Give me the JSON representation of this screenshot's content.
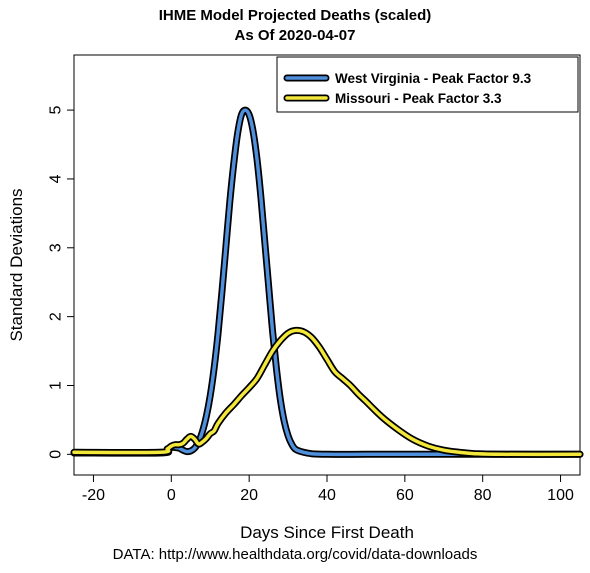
{
  "chart_data": {
    "type": "line",
    "title": "IHME Model Projected Deaths (scaled)",
    "subtitle": "As Of 2020-04-07",
    "xlabel": "Days Since First Death",
    "ylabel": "Standard Deviations",
    "source": "DATA: http://www.healthdata.org/covid/data-downloads",
    "xlim": [
      -25,
      105
    ],
    "ylim": [
      -0.3,
      5.8
    ],
    "xticks": [
      -20,
      0,
      20,
      40,
      60,
      80,
      100
    ],
    "yticks": [
      0,
      1,
      2,
      3,
      4,
      5
    ],
    "grid": false,
    "legend_position": "top-right",
    "series": [
      {
        "name": "West Virginia - Peak Factor 9.3",
        "color": "#4f8fdc",
        "outline": "#000000",
        "x": [
          -25,
          -3,
          -1,
          0,
          1,
          2,
          3,
          4,
          5,
          6,
          7,
          8,
          9,
          10,
          11,
          12,
          13,
          14,
          15,
          16,
          17,
          18,
          19,
          20,
          21,
          22,
          23,
          24,
          25,
          26,
          27,
          28,
          29,
          30,
          31,
          32,
          34,
          36,
          40,
          50,
          60,
          80,
          105
        ],
        "values": [
          0.02,
          0.02,
          0.06,
          0.1,
          0.1,
          0.09,
          0.06,
          0.04,
          0.05,
          0.09,
          0.18,
          0.33,
          0.55,
          0.85,
          1.25,
          1.75,
          2.35,
          3.0,
          3.65,
          4.2,
          4.65,
          4.93,
          5.0,
          4.93,
          4.7,
          4.3,
          3.75,
          3.1,
          2.45,
          1.8,
          1.25,
          0.8,
          0.48,
          0.27,
          0.14,
          0.07,
          0.03,
          0.01,
          0.0,
          0.0,
          0.0,
          0.0,
          0.0
        ]
      },
      {
        "name": "Missouri - Peak Factor 3.3",
        "color": "#f3e83a",
        "outline": "#000000",
        "x": [
          -25,
          -3,
          -1,
          0,
          1,
          2,
          3,
          4,
          5,
          6,
          7,
          8,
          9,
          10,
          11,
          12,
          14,
          16,
          18,
          20,
          22,
          24,
          26,
          28,
          30,
          32,
          34,
          36,
          38,
          40,
          42,
          44,
          46,
          48,
          50,
          54,
          58,
          62,
          66,
          70,
          74,
          78,
          85,
          105
        ],
        "values": [
          0.03,
          0.03,
          0.08,
          0.12,
          0.14,
          0.14,
          0.16,
          0.22,
          0.26,
          0.22,
          0.15,
          0.18,
          0.23,
          0.3,
          0.34,
          0.45,
          0.6,
          0.72,
          0.85,
          0.97,
          1.1,
          1.3,
          1.5,
          1.65,
          1.76,
          1.8,
          1.78,
          1.7,
          1.56,
          1.38,
          1.2,
          1.1,
          1.0,
          0.88,
          0.77,
          0.55,
          0.37,
          0.22,
          0.12,
          0.06,
          0.03,
          0.01,
          0.0,
          0.0
        ]
      }
    ]
  }
}
